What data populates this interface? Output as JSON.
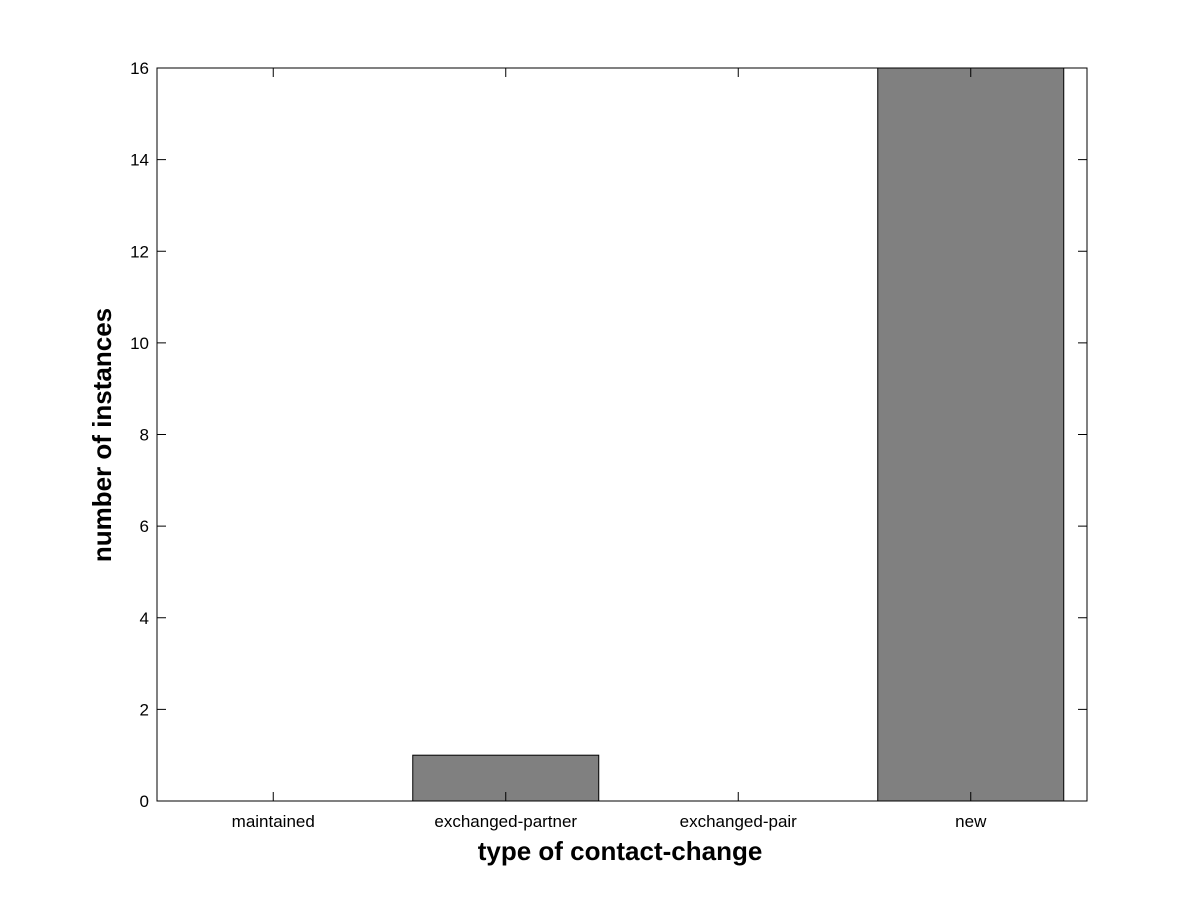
{
  "chart_data": {
    "type": "bar",
    "title": "",
    "xlabel": "type of contact-change",
    "ylabel": "number of instances",
    "categories": [
      "maintained",
      "exchanged-partner",
      "exchanged-pair",
      "new"
    ],
    "values": [
      0,
      1,
      0,
      16
    ],
    "ylim": [
      0,
      16
    ],
    "yticks": [
      0,
      2,
      4,
      6,
      8,
      10,
      12,
      14,
      16
    ],
    "grid": false,
    "bar_color": "#808080",
    "edge_color": "#000000"
  }
}
